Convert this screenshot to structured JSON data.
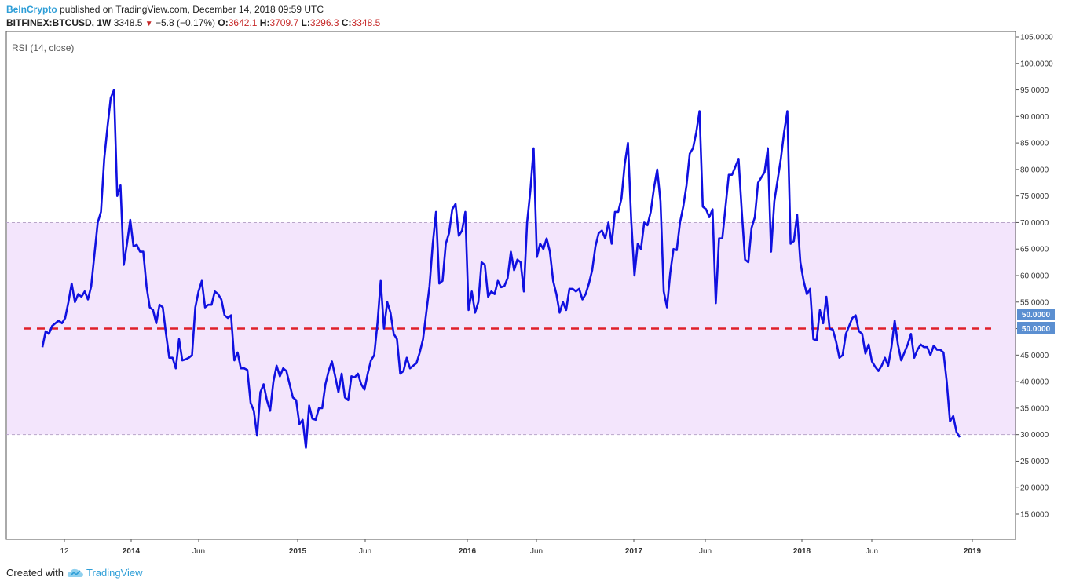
{
  "header": {
    "brand": "BeInCrypto",
    "published": "published on TradingView.com, December 14, 2018 09:59 UTC",
    "symbol": "BITFINEX:BTCUSD, 1W",
    "last": "3348.5",
    "change": "−5.8 (−0.17%)",
    "o_label": "O:",
    "o_value": "3642.1",
    "h_label": "H:",
    "h_value": "3709.7",
    "l_label": "L:",
    "l_value": "3296.3",
    "c_label": "C:",
    "c_value": "3348.5"
  },
  "footer": {
    "created_with": "Created with",
    "tradingview": "TradingView"
  },
  "colors": {
    "rsi_line": "#1010e0",
    "midline": "#e0202a",
    "band_fill": "#f3e5fc",
    "band_border": "#b9a6c9",
    "price_tag": "#5b8fd1"
  },
  "chart_data": {
    "type": "line",
    "indicator_label": "RSI (14, close)",
    "ylim": [
      10,
      105
    ],
    "y_ticks": [
      "105.0000",
      "100.0000",
      "95.0000",
      "90.0000",
      "85.0000",
      "80.0000",
      "75.0000",
      "70.0000",
      "65.0000",
      "60.0000",
      "55.0000",
      "50.0000",
      "45.0000",
      "40.0000",
      "35.0000",
      "30.0000",
      "25.0000",
      "20.0000",
      "15.0000"
    ],
    "upper_band": 70,
    "lower_band": 30,
    "midline": 50,
    "price_tags": [
      "50.0000",
      "50.0000"
    ],
    "x_ticks": [
      {
        "label": "12",
        "bold": false
      },
      {
        "label": "2014",
        "bold": true
      },
      {
        "label": "Jun",
        "bold": false
      },
      {
        "label": "2015",
        "bold": true
      },
      {
        "label": "Jun",
        "bold": false
      },
      {
        "label": "2016",
        "bold": true
      },
      {
        "label": "Jun",
        "bold": false
      },
      {
        "label": "2017",
        "bold": true
      },
      {
        "label": "Jun",
        "bold": false
      },
      {
        "label": "2018",
        "bold": true
      },
      {
        "label": "Jun",
        "bold": false
      },
      {
        "label": "2019",
        "bold": true
      }
    ],
    "series": [
      {
        "values": [
          46.5,
          49.5,
          49,
          50.5,
          51,
          51.5,
          51,
          52,
          55,
          58.5,
          55,
          56.5,
          56,
          57,
          55.5,
          58,
          64,
          70,
          72,
          82,
          88,
          93.5,
          95,
          75,
          77,
          62,
          66,
          70.5,
          65.5,
          65.8,
          64.5,
          64.5,
          58,
          54,
          53.5,
          51,
          54.5,
          54,
          49,
          44.5,
          44.5,
          42.5,
          48,
          44,
          44.2,
          44.5,
          45,
          54,
          57,
          59,
          54,
          54.5,
          54.5,
          57,
          56.5,
          55.5,
          52.5,
          52,
          52.5,
          44,
          45.5,
          42.5,
          42.5,
          42.2,
          36,
          34.5,
          29.8,
          38,
          39.5,
          36.5,
          34.5,
          40,
          43,
          41,
          42.5,
          42,
          39.5,
          37,
          36.5,
          32,
          32.8,
          27.5,
          35.5,
          33,
          32.8,
          35,
          35,
          39.5,
          42,
          43.8,
          41,
          38,
          41.5,
          37,
          36.5,
          41,
          40.8,
          41.5,
          39.5,
          38.5,
          41.5,
          44,
          45,
          51,
          59,
          50,
          55,
          53,
          49,
          48,
          41.5,
          42,
          44.5,
          42.5,
          43,
          43.5,
          45.5,
          48,
          53,
          58,
          66,
          72,
          58.5,
          59,
          66,
          68,
          72.5,
          73.5,
          67.5,
          68.5,
          72,
          53.5,
          57,
          53,
          55,
          62.5,
          62,
          56,
          57,
          56.5,
          59,
          57.8,
          58,
          59.5,
          64.5,
          61,
          63,
          62.5,
          57,
          70,
          76,
          84,
          63.5,
          66,
          65,
          67,
          64.5,
          59,
          56.5,
          53,
          55,
          53.5,
          57.5,
          57.5,
          57,
          57.5,
          55.5,
          56.5,
          58.5,
          61,
          65.5,
          68,
          68.5,
          67,
          70,
          66,
          72,
          72,
          74.5,
          81,
          85,
          70.5,
          60,
          66,
          65,
          70,
          69.5,
          72,
          76.5,
          80,
          74,
          57,
          54,
          60.5,
          65,
          64.8,
          70,
          73,
          77,
          83,
          84,
          87,
          91,
          73,
          72.5,
          71,
          72.5,
          54.8,
          67,
          67,
          73,
          79,
          79,
          80.5,
          82,
          72,
          63,
          62.5,
          69,
          71,
          77.5,
          78.5,
          79.5,
          84,
          64.5,
          74,
          78,
          82,
          87,
          91,
          66,
          66.5,
          71.5,
          62.5,
          59,
          56.5,
          57.5,
          48,
          47.8,
          53.5,
          51,
          56,
          50,
          49.8,
          47.5,
          44.5,
          45,
          49,
          50.5,
          52,
          52.5,
          49.5,
          49,
          45.3,
          47,
          43.8,
          42.8,
          42,
          43,
          44.5,
          43,
          46.5,
          51.5,
          47,
          44,
          45.5,
          47,
          49,
          44.5,
          46,
          47,
          46.5,
          46.5,
          45,
          46.8,
          46,
          46,
          45.5,
          40,
          32.5,
          33.5,
          30.5,
          29.5
        ]
      }
    ]
  }
}
